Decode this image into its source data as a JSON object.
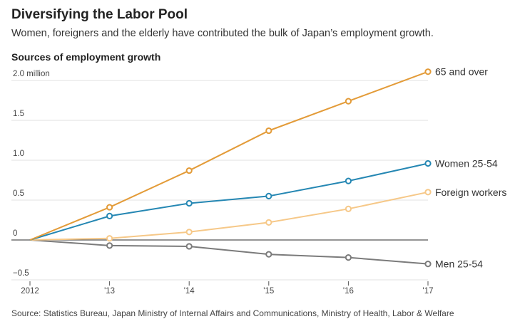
{
  "header": {
    "title": "Diversifying the Labor Pool",
    "subtitle": "Women, foreigners and the elderly have contributed the bulk of Japan’s employment growth."
  },
  "source": "Source:  Statistics Bureau, Japan Ministry of Internal Affairs and Communications, Ministry of Health, Labor & Welfare",
  "chart_data": {
    "type": "line",
    "title": "Sources of employment growth",
    "xlabel": "",
    "ylabel": "",
    "x": [
      2012,
      2013,
      2014,
      2015,
      2016,
      2017
    ],
    "x_tick_labels": [
      "2012",
      "'13",
      "'14",
      "'15",
      "'16",
      "'17"
    ],
    "y_ticks": [
      -0.5,
      0,
      0.5,
      1.0,
      1.5,
      2.0
    ],
    "y_tick_labels": [
      "−0.5",
      "0",
      "0.5",
      "1.0",
      "1.5",
      "2.0 million"
    ],
    "ylim": [
      -0.5,
      2.1
    ],
    "grid": true,
    "legend": "direct labels at right end of lines",
    "series": [
      {
        "name": "65 and over",
        "color": "#e39b38",
        "values": [
          0,
          0.41,
          0.87,
          1.37,
          1.74,
          2.11
        ]
      },
      {
        "name": "Women 25-54",
        "color": "#2587b3",
        "values": [
          0,
          0.3,
          0.46,
          0.55,
          0.74,
          0.96
        ]
      },
      {
        "name": "Foreign workers",
        "color": "#f6c888",
        "values": [
          0,
          0.02,
          0.1,
          0.22,
          0.39,
          0.6
        ]
      },
      {
        "name": "Men 25-54",
        "color": "#7b7b7b",
        "values": [
          0,
          -0.07,
          -0.08,
          -0.18,
          -0.22,
          -0.3
        ]
      }
    ]
  }
}
